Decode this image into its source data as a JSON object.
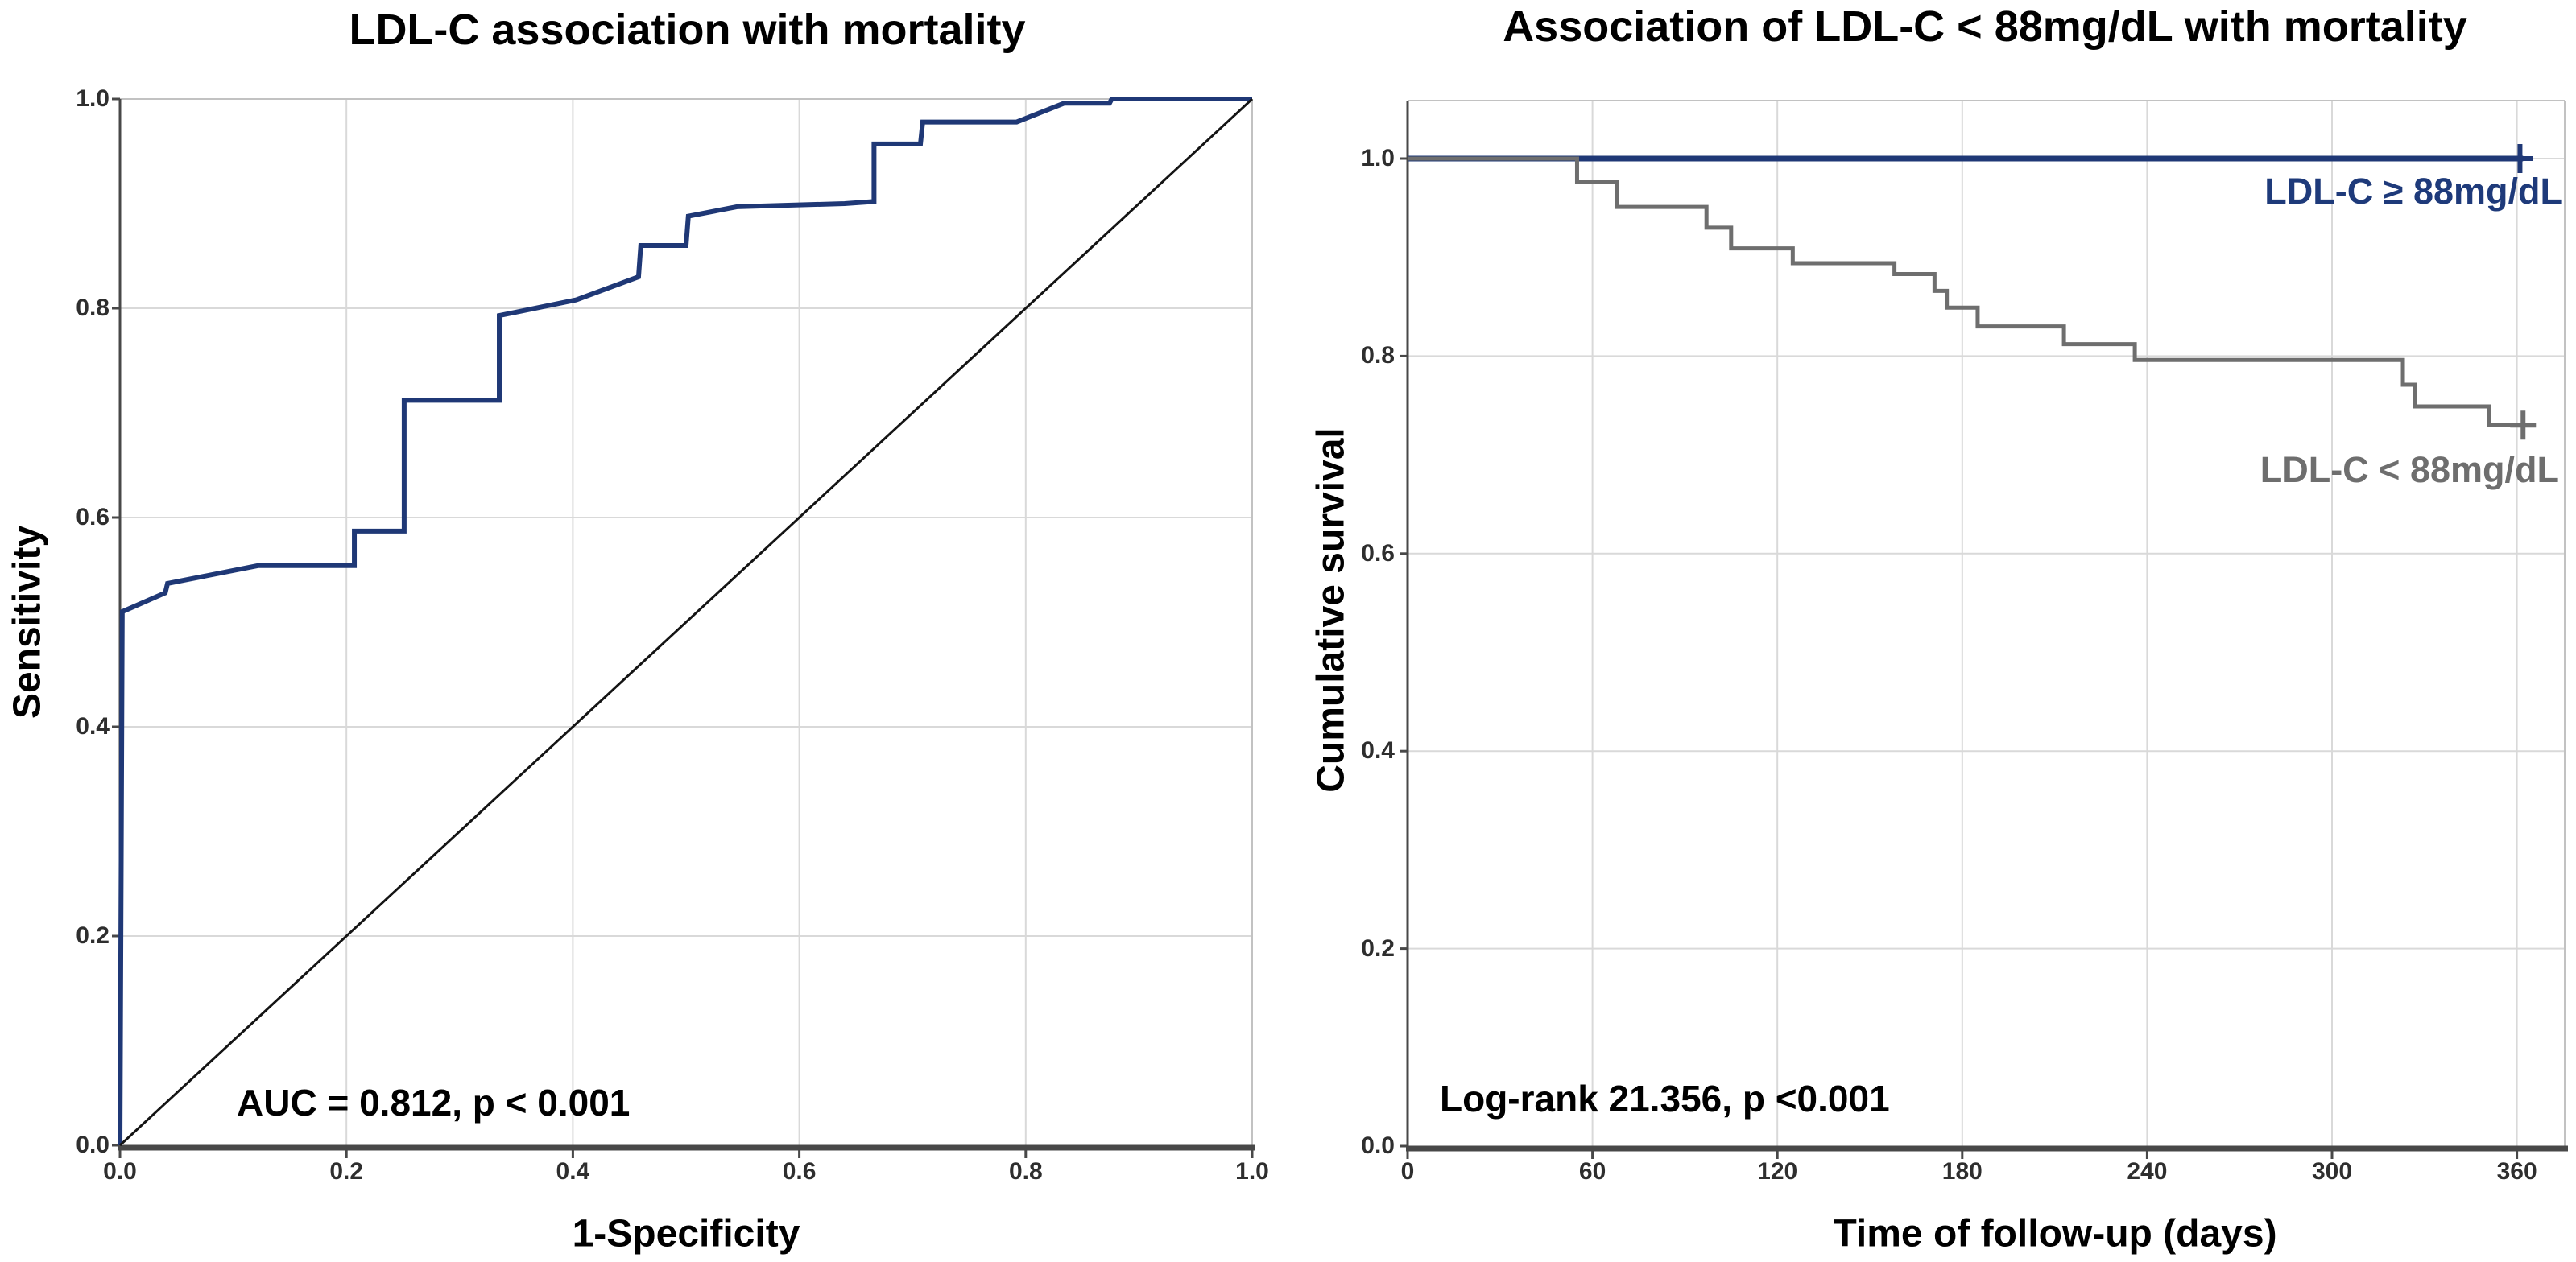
{
  "page": {
    "background": "#ffffff",
    "accent_blue": "#1e3a7a",
    "curve_gray": "#6e6e6e"
  },
  "chart_data": [
    {
      "type": "line",
      "subtype": "roc-curve",
      "title": "LDL-C association with mortality",
      "xlabel": "1-Specificity",
      "ylabel": "Sensitivity",
      "annotation": "AUC = 0.812, p < 0.001",
      "xlim": [
        0,
        1
      ],
      "ylim": [
        0,
        1
      ],
      "grid": true,
      "legend_position": "none",
      "xticks": [
        {
          "label": "0.0",
          "v": 0.0
        },
        {
          "label": "0.2",
          "v": 0.2
        },
        {
          "label": "0.4",
          "v": 0.4
        },
        {
          "label": "0.6",
          "v": 0.6
        },
        {
          "label": "0.8",
          "v": 0.8
        },
        {
          "label": "1.0",
          "v": 1.0
        }
      ],
      "yticks": [
        {
          "label": "0.0",
          "v": 0.0
        },
        {
          "label": "0.2",
          "v": 0.2
        },
        {
          "label": "0.4",
          "v": 0.4
        },
        {
          "label": "0.6",
          "v": 0.6
        },
        {
          "label": "0.8",
          "v": 0.8
        },
        {
          "label": "1.0",
          "v": 1.0
        }
      ],
      "series": [
        {
          "name": "ROC curve",
          "color": "#1f3876",
          "width": 6,
          "points": [
            [
              0.0,
              0.0
            ],
            [
              0.002,
              0.51
            ],
            [
              0.04,
              0.528
            ],
            [
              0.042,
              0.537
            ],
            [
              0.122,
              0.554
            ],
            [
              0.207,
              0.554
            ],
            [
              0.207,
              0.587
            ],
            [
              0.251,
              0.587
            ],
            [
              0.251,
              0.712
            ],
            [
              0.335,
              0.712
            ],
            [
              0.335,
              0.793
            ],
            [
              0.403,
              0.808
            ],
            [
              0.458,
              0.83
            ],
            [
              0.46,
              0.86
            ],
            [
              0.5,
              0.86
            ],
            [
              0.502,
              0.888
            ],
            [
              0.545,
              0.897
            ],
            [
              0.64,
              0.9
            ],
            [
              0.666,
              0.902
            ],
            [
              0.666,
              0.957
            ],
            [
              0.707,
              0.957
            ],
            [
              0.709,
              0.978
            ],
            [
              0.792,
              0.978
            ],
            [
              0.834,
              0.996
            ],
            [
              0.874,
              0.996
            ],
            [
              0.876,
              1.0
            ],
            [
              1.0,
              1.0
            ]
          ]
        },
        {
          "name": "Reference diagonal",
          "color": "#141414",
          "width": 3,
          "points": [
            [
              0,
              0
            ],
            [
              1,
              1
            ]
          ]
        }
      ]
    },
    {
      "type": "line",
      "subtype": "kaplan-meier",
      "title": "Association of LDL-C < 88mg/dL with mortality",
      "xlabel": "Time of follow-up (days)",
      "ylabel": "Cumulative survival",
      "annotation": "Log-rank 21.356, p <0.001",
      "xlim": [
        0,
        375
      ],
      "ylim": [
        0,
        1.05
      ],
      "grid": true,
      "censor_marker": "+",
      "xticks": [
        {
          "label": "0",
          "v": 0
        },
        {
          "label": "60",
          "v": 60
        },
        {
          "label": "120",
          "v": 120
        },
        {
          "label": "180",
          "v": 180
        },
        {
          "label": "240",
          "v": 240
        },
        {
          "label": "300",
          "v": 300
        },
        {
          "label": "360",
          "v": 360
        }
      ],
      "yticks": [
        {
          "label": "0.0",
          "v": 0.0
        },
        {
          "label": "0.2",
          "v": 0.2
        },
        {
          "label": "0.4",
          "v": 0.4
        },
        {
          "label": "0.6",
          "v": 0.6
        },
        {
          "label": "0.8",
          "v": 0.8
        },
        {
          "label": "1.0",
          "v": 1.0
        }
      ],
      "series": [
        {
          "name": "LDL-C ≥ 88mg/dL",
          "color": "#1f3876",
          "width": 7,
          "points": [
            [
              0,
              1.0
            ],
            [
              362,
              1.0
            ]
          ],
          "censors": [
            [
              361,
              1.0
            ]
          ]
        },
        {
          "name": "LDL-C < 88mg/dL",
          "color": "#6e6e6e",
          "width": 5,
          "points": [
            [
              0,
              1.0
            ],
            [
              55,
              1.0
            ],
            [
              55,
              0.976
            ],
            [
              68,
              0.976
            ],
            [
              68,
              0.951
            ],
            [
              97,
              0.951
            ],
            [
              97,
              0.93
            ],
            [
              105,
              0.93
            ],
            [
              105,
              0.909
            ],
            [
              125,
              0.909
            ],
            [
              125,
              0.894
            ],
            [
              158,
              0.894
            ],
            [
              158,
              0.883
            ],
            [
              171,
              0.883
            ],
            [
              171,
              0.866
            ],
            [
              175,
              0.866
            ],
            [
              175,
              0.849
            ],
            [
              185,
              0.849
            ],
            [
              185,
              0.83
            ],
            [
              213,
              0.83
            ],
            [
              213,
              0.812
            ],
            [
              236,
              0.812
            ],
            [
              236,
              0.796
            ],
            [
              323,
              0.796
            ],
            [
              323,
              0.771
            ],
            [
              327,
              0.771
            ],
            [
              327,
              0.749
            ],
            [
              351,
              0.749
            ],
            [
              351,
              0.73
            ],
            [
              366,
              0.73
            ]
          ],
          "censors": [
            [
              362,
              0.73
            ]
          ]
        }
      ],
      "legend": [
        {
          "label": "LDL-C ≥ 88mg/dL",
          "color": "#1e3a7a"
        },
        {
          "label": "LDL-C < 88mg/dL",
          "color": "#6e6e6e"
        }
      ]
    }
  ]
}
